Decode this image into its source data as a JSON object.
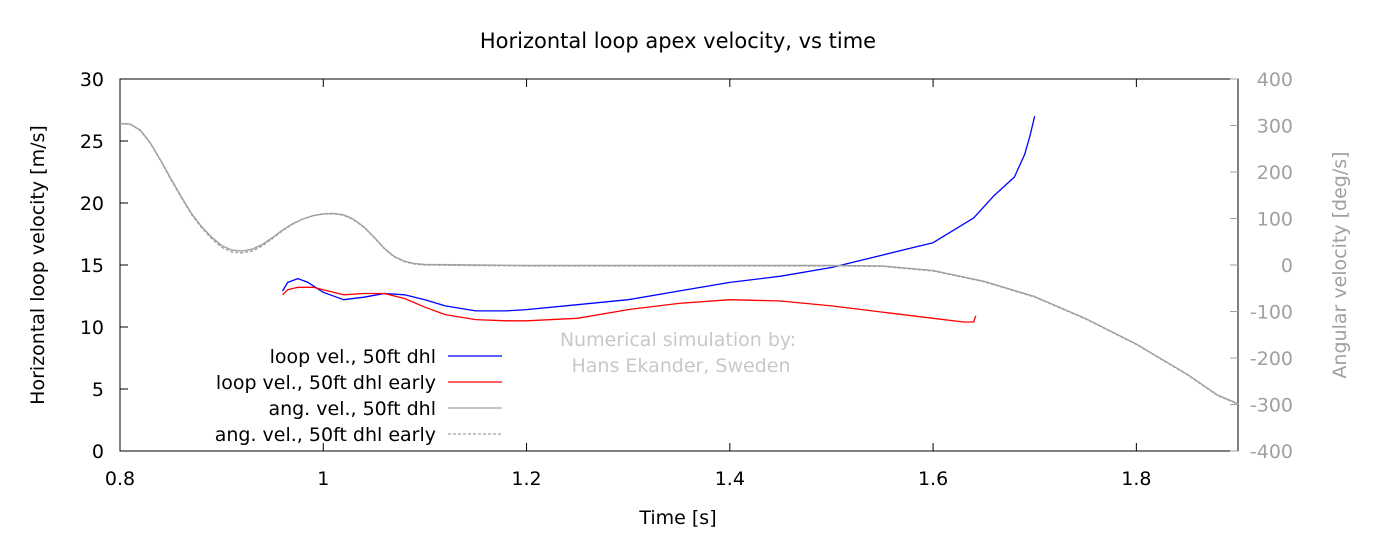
{
  "chart_data": {
    "type": "line",
    "title": "Horizontal loop apex velocity, vs time",
    "xlabel": "Time [s]",
    "ylabel": "Horizontal loop velocity [m/s]",
    "y2label": "Angular velocity [deg/s]",
    "xlim": [
      0.8,
      1.9
    ],
    "ylim": [
      0,
      30
    ],
    "y2lim": [
      -400,
      400
    ],
    "x_ticks": [
      "0.8",
      "1",
      "1.2",
      "1.4",
      "1.6",
      "1.8"
    ],
    "y_ticks": [
      "0",
      "5",
      "10",
      "15",
      "20",
      "25",
      "30"
    ],
    "y2_ticks": [
      "-400",
      "-300",
      "-200",
      "-100",
      "0",
      "100",
      "200",
      "300",
      "400"
    ],
    "grid": false,
    "legend_position": "bottom-left",
    "annotation": [
      "Numerical simulation by:",
      "Hans Ekander, Sweden"
    ],
    "colors": {
      "blue": "#0000ff",
      "red": "#ff0000",
      "gray": "#a0a0a0",
      "axis": "#000000",
      "axis_right": "#a0a0a0",
      "annotation": "#c8c8c8"
    },
    "series": [
      {
        "name": "loop vel., 50ft dhl",
        "axis": "left",
        "color": "#0000ff",
        "dash": false,
        "x": [
          0.96,
          0.965,
          0.975,
          0.985,
          1.0,
          1.02,
          1.04,
          1.06,
          1.08,
          1.1,
          1.12,
          1.15,
          1.18,
          1.2,
          1.25,
          1.3,
          1.35,
          1.4,
          1.45,
          1.5,
          1.55,
          1.58,
          1.6,
          1.62,
          1.64,
          1.66,
          1.68,
          1.69,
          1.695,
          1.7
        ],
        "values": [
          12.9,
          13.6,
          13.9,
          13.6,
          12.8,
          12.2,
          12.4,
          12.7,
          12.6,
          12.2,
          11.7,
          11.3,
          11.3,
          11.4,
          11.8,
          12.2,
          12.9,
          13.6,
          14.1,
          14.8,
          15.8,
          16.4,
          16.8,
          17.8,
          18.8,
          20.6,
          22.1,
          23.9,
          25.3,
          27.0
        ]
      },
      {
        "name": "loop vel., 50ft dhl early",
        "axis": "left",
        "color": "#ff0000",
        "dash": false,
        "x": [
          0.96,
          0.965,
          0.975,
          0.99,
          1.0,
          1.02,
          1.04,
          1.06,
          1.08,
          1.1,
          1.12,
          1.15,
          1.18,
          1.2,
          1.25,
          1.3,
          1.35,
          1.4,
          1.45,
          1.5,
          1.55,
          1.6,
          1.63,
          1.64,
          1.642
        ],
        "values": [
          12.6,
          13.0,
          13.2,
          13.2,
          13.0,
          12.6,
          12.7,
          12.7,
          12.3,
          11.6,
          11.0,
          10.6,
          10.5,
          10.5,
          10.7,
          11.4,
          11.9,
          12.2,
          12.1,
          11.7,
          11.2,
          10.7,
          10.4,
          10.4,
          10.9
        ]
      },
      {
        "name": "ang. vel., 50ft dhl",
        "axis": "right",
        "color": "#a0a0a0",
        "dash": false,
        "x": [
          0.8,
          0.81,
          0.82,
          0.83,
          0.84,
          0.85,
          0.86,
          0.87,
          0.88,
          0.89,
          0.9,
          0.91,
          0.92,
          0.93,
          0.94,
          0.95,
          0.96,
          0.97,
          0.98,
          0.99,
          1.0,
          1.01,
          1.02,
          1.03,
          1.04,
          1.05,
          1.06,
          1.07,
          1.08,
          1.09,
          1.1,
          1.15,
          1.2,
          1.3,
          1.4,
          1.5,
          1.55,
          1.6,
          1.65,
          1.7,
          1.75,
          1.8,
          1.85,
          1.88,
          1.9
        ],
        "values": [
          304,
          303,
          290,
          262,
          225,
          186,
          148,
          112,
          83,
          60,
          42,
          32,
          30,
          34,
          44,
          59,
          75,
          89,
          99,
          106,
          110,
          111,
          108,
          98,
          82,
          60,
          36,
          18,
          8,
          3,
          1,
          0,
          -1,
          -1,
          -1,
          -1,
          -2,
          -12,
          -35,
          -68,
          -115,
          -170,
          -235,
          -280,
          -298
        ]
      },
      {
        "name": "ang. vel., 50ft dhl early",
        "axis": "right",
        "color": "#a0a0a0",
        "dash": true,
        "x": [
          0.8,
          0.81,
          0.82,
          0.83,
          0.84,
          0.85,
          0.86,
          0.87,
          0.88,
          0.89,
          0.9,
          0.91,
          0.92,
          0.93,
          0.94,
          0.95,
          0.96,
          0.97,
          0.98,
          0.99,
          1.0,
          1.01,
          1.02,
          1.03,
          1.04,
          1.05,
          1.06,
          1.07,
          1.08,
          1.09,
          1.1,
          1.15,
          1.2,
          1.3,
          1.4,
          1.5,
          1.55,
          1.6,
          1.65,
          1.7,
          1.75,
          1.8,
          1.85,
          1.88,
          1.9
        ],
        "values": [
          304,
          303,
          289,
          261,
          224,
          184,
          146,
          110,
          81,
          57,
          38,
          28,
          26,
          30,
          41,
          57,
          74,
          88,
          99,
          106,
          110,
          110,
          107,
          97,
          81,
          59,
          35,
          17,
          7,
          2,
          0,
          -1,
          -2,
          -2,
          -2,
          -2,
          -3,
          -13,
          -36,
          -69,
          -116,
          -171,
          -236,
          -281,
          -299
        ]
      }
    ]
  }
}
